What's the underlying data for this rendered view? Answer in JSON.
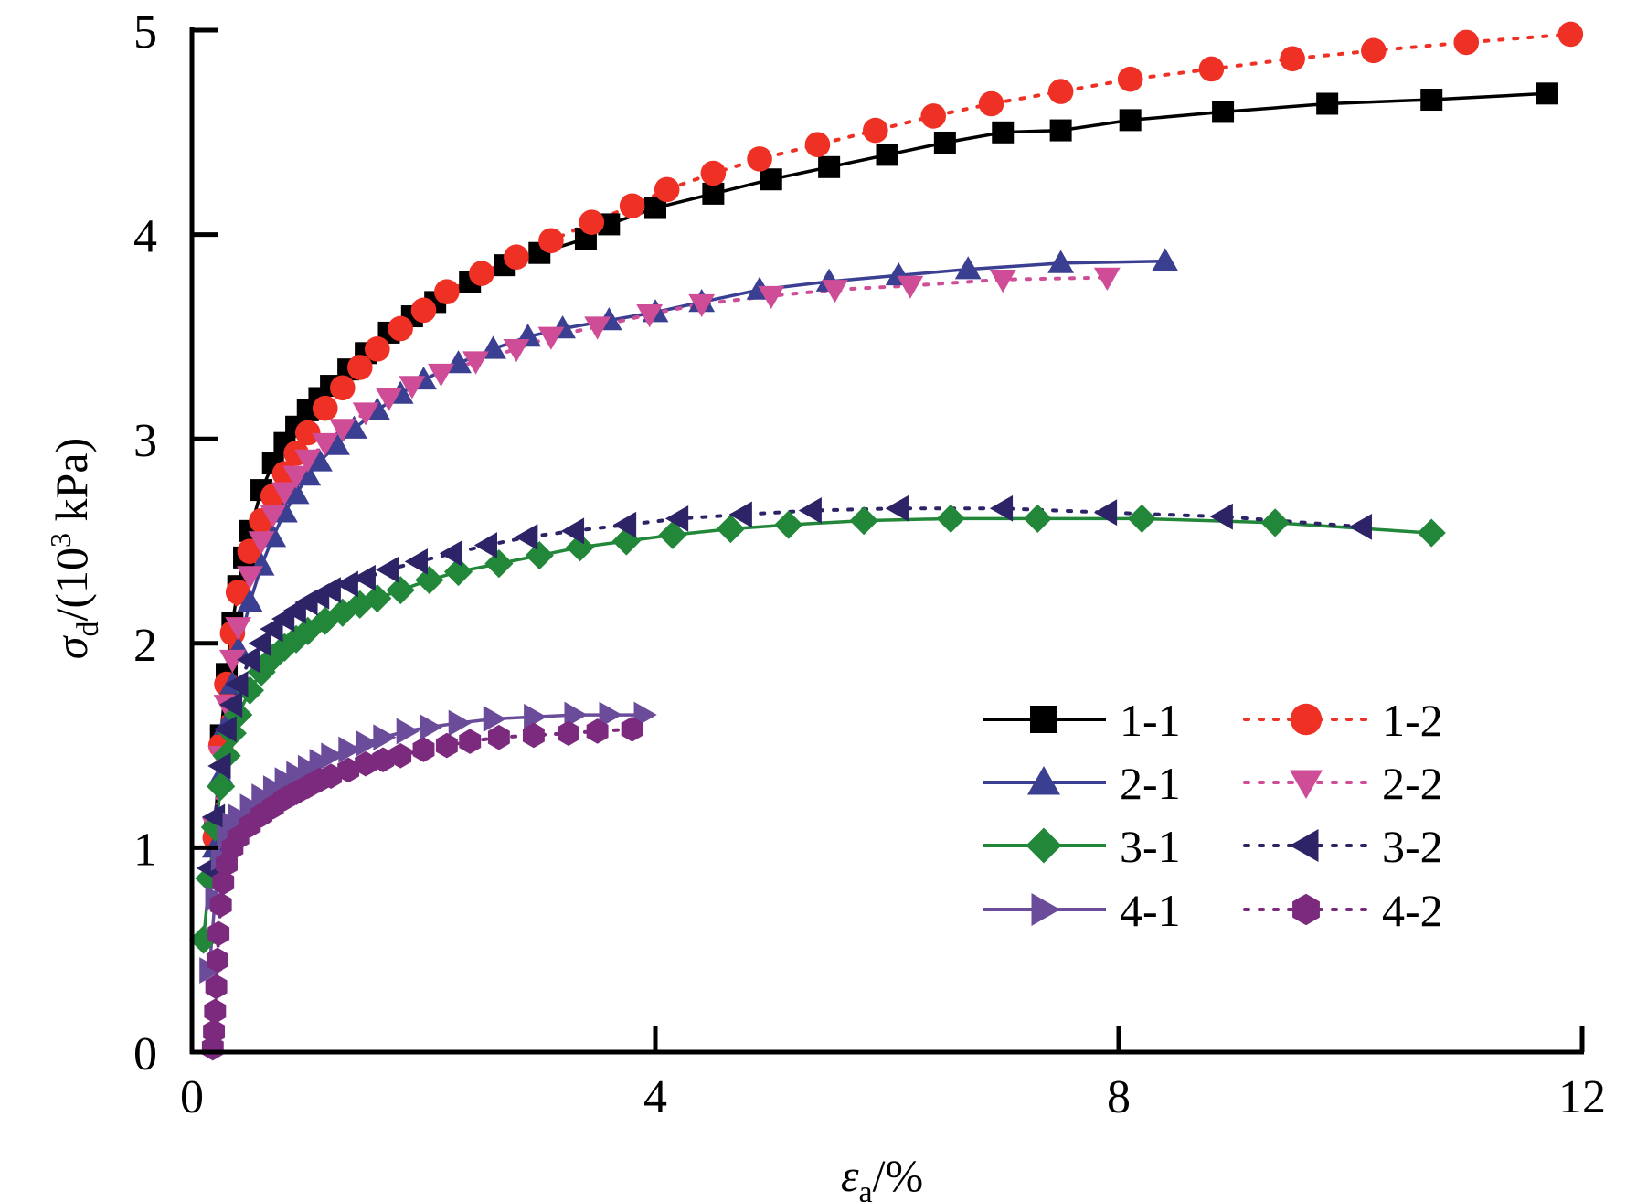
{
  "chart_data": {
    "type": "line",
    "xlabel": {
      "sym": "ε",
      "sub": "a",
      "rest": "/%"
    },
    "ylabel": {
      "sym": "σ",
      "sub": "d",
      "pre": "/(10",
      "sup": "3",
      "post": " kPa)"
    },
    "xlim": [
      0,
      12
    ],
    "ylim": [
      0,
      5
    ],
    "xticks": [
      0,
      4,
      8,
      12
    ],
    "yticks": [
      0,
      1,
      2,
      3,
      4,
      5
    ],
    "grid": false,
    "legend_position": "bottom-right",
    "series": [
      {
        "name": "1-1",
        "color": "#000000",
        "marker": "square",
        "dash": "solid",
        "x": [
          0.2,
          0.25,
          0.3,
          0.35,
          0.4,
          0.45,
          0.5,
          0.6,
          0.7,
          0.8,
          0.9,
          1.0,
          1.1,
          1.2,
          1.35,
          1.5,
          1.7,
          1.9,
          2.1,
          2.4,
          2.7,
          3.0,
          3.4,
          3.6,
          4.0,
          4.5,
          5.0,
          5.5,
          6.0,
          6.5,
          7.0,
          7.5,
          8.1,
          8.9,
          9.8,
          10.7,
          11.7
        ],
        "y": [
          1.1,
          1.55,
          1.85,
          2.1,
          2.28,
          2.42,
          2.55,
          2.75,
          2.88,
          2.98,
          3.06,
          3.14,
          3.2,
          3.26,
          3.34,
          3.42,
          3.52,
          3.6,
          3.67,
          3.77,
          3.85,
          3.91,
          3.98,
          4.05,
          4.13,
          4.2,
          4.27,
          4.33,
          4.39,
          4.45,
          4.5,
          4.51,
          4.56,
          4.6,
          4.64,
          4.66,
          4.69
        ]
      },
      {
        "name": "1-2",
        "color": "#ee3124",
        "marker": "circle",
        "dash": "dotted",
        "x": [
          0.2,
          0.25,
          0.3,
          0.35,
          0.4,
          0.5,
          0.6,
          0.7,
          0.8,
          0.9,
          1.0,
          1.15,
          1.3,
          1.45,
          1.6,
          1.8,
          2.0,
          2.2,
          2.5,
          2.8,
          3.1,
          3.45,
          3.8,
          4.1,
          4.5,
          4.9,
          5.4,
          5.9,
          6.4,
          6.9,
          7.5,
          8.1,
          8.8,
          9.5,
          10.2,
          11.0,
          11.9
        ],
        "y": [
          1.05,
          1.5,
          1.8,
          2.05,
          2.25,
          2.45,
          2.6,
          2.72,
          2.83,
          2.93,
          3.03,
          3.15,
          3.25,
          3.35,
          3.44,
          3.54,
          3.63,
          3.72,
          3.81,
          3.89,
          3.97,
          4.06,
          4.14,
          4.22,
          4.3,
          4.37,
          4.44,
          4.51,
          4.58,
          4.64,
          4.7,
          4.76,
          4.81,
          4.86,
          4.9,
          4.94,
          4.98
        ]
      },
      {
        "name": "2-1",
        "color": "#3b3f92",
        "marker": "triangle-up",
        "dash": "solid",
        "x": [
          0.2,
          0.25,
          0.3,
          0.35,
          0.4,
          0.5,
          0.6,
          0.7,
          0.8,
          0.9,
          1.0,
          1.1,
          1.25,
          1.4,
          1.6,
          1.8,
          2.0,
          2.3,
          2.6,
          2.9,
          3.2,
          3.6,
          4.0,
          4.4,
          4.9,
          5.5,
          6.1,
          6.7,
          7.5,
          8.4
        ],
        "y": [
          1.0,
          1.35,
          1.6,
          1.8,
          1.97,
          2.2,
          2.38,
          2.52,
          2.64,
          2.73,
          2.82,
          2.89,
          2.97,
          3.05,
          3.14,
          3.22,
          3.29,
          3.37,
          3.44,
          3.5,
          3.54,
          3.58,
          3.62,
          3.67,
          3.73,
          3.77,
          3.8,
          3.83,
          3.86,
          3.87
        ]
      },
      {
        "name": "2-2",
        "color": "#cf4d97",
        "marker": "triangle-down",
        "dash": "dotted",
        "x": [
          0.2,
          0.25,
          0.3,
          0.35,
          0.4,
          0.5,
          0.6,
          0.7,
          0.8,
          0.9,
          1.0,
          1.15,
          1.3,
          1.5,
          1.7,
          1.9,
          2.15,
          2.45,
          2.8,
          3.1,
          3.5,
          3.95,
          4.4,
          5.0,
          5.55,
          6.2,
          7.0,
          7.9
        ],
        "y": [
          1.1,
          1.45,
          1.7,
          1.92,
          2.08,
          2.33,
          2.5,
          2.63,
          2.74,
          2.82,
          2.9,
          2.98,
          3.05,
          3.13,
          3.2,
          3.26,
          3.32,
          3.38,
          3.44,
          3.5,
          3.55,
          3.61,
          3.66,
          3.7,
          3.73,
          3.75,
          3.78,
          3.79
        ]
      },
      {
        "name": "3-1",
        "color": "#23873a",
        "marker": "diamond",
        "dash": "solid",
        "x": [
          0.1,
          0.15,
          0.2,
          0.25,
          0.3,
          0.35,
          0.4,
          0.5,
          0.6,
          0.7,
          0.8,
          0.9,
          1.0,
          1.15,
          1.3,
          1.45,
          1.6,
          1.8,
          2.05,
          2.3,
          2.65,
          3.0,
          3.35,
          3.75,
          4.15,
          4.65,
          5.15,
          5.8,
          6.55,
          7.3,
          8.2,
          9.35,
          10.7
        ],
        "y": [
          0.55,
          0.85,
          1.1,
          1.3,
          1.45,
          1.56,
          1.65,
          1.77,
          1.86,
          1.93,
          1.98,
          2.02,
          2.06,
          2.11,
          2.15,
          2.19,
          2.22,
          2.26,
          2.31,
          2.35,
          2.39,
          2.43,
          2.47,
          2.5,
          2.53,
          2.56,
          2.58,
          2.6,
          2.61,
          2.61,
          2.61,
          2.59,
          2.54
        ]
      },
      {
        "name": "3-2",
        "color": "#2d2367",
        "marker": "triangle-left",
        "dash": "dotted",
        "x": [
          0.15,
          0.2,
          0.25,
          0.3,
          0.35,
          0.4,
          0.5,
          0.6,
          0.7,
          0.8,
          0.9,
          1.0,
          1.1,
          1.2,
          1.35,
          1.5,
          1.7,
          1.95,
          2.25,
          2.55,
          2.9,
          3.3,
          3.75,
          4.2,
          4.75,
          5.35,
          6.1,
          7.0,
          7.9,
          8.9,
          10.1
        ],
        "y": [
          0.9,
          1.15,
          1.4,
          1.58,
          1.7,
          1.8,
          1.92,
          2.0,
          2.07,
          2.12,
          2.16,
          2.2,
          2.23,
          2.26,
          2.29,
          2.32,
          2.36,
          2.4,
          2.44,
          2.48,
          2.52,
          2.55,
          2.58,
          2.61,
          2.63,
          2.65,
          2.66,
          2.66,
          2.64,
          2.62,
          2.57
        ]
      },
      {
        "name": "4-1",
        "color": "#6b4c9a",
        "marker": "triangle-right",
        "dash": "solid",
        "x": [
          0.15,
          0.2,
          0.25,
          0.3,
          0.35,
          0.4,
          0.5,
          0.6,
          0.7,
          0.8,
          0.9,
          1.0,
          1.1,
          1.2,
          1.35,
          1.5,
          1.65,
          1.85,
          2.05,
          2.3,
          2.6,
          2.95,
          3.3,
          3.6,
          3.9
        ],
        "y": [
          0.4,
          0.75,
          0.95,
          1.05,
          1.11,
          1.15,
          1.2,
          1.25,
          1.29,
          1.33,
          1.36,
          1.39,
          1.42,
          1.45,
          1.48,
          1.51,
          1.54,
          1.57,
          1.59,
          1.61,
          1.63,
          1.64,
          1.65,
          1.65,
          1.65
        ]
      },
      {
        "name": "4-2",
        "color": "#7b2a7e",
        "marker": "hexagon",
        "dash": "dotted",
        "x": [
          0.18,
          0.19,
          0.2,
          0.21,
          0.22,
          0.23,
          0.25,
          0.27,
          0.3,
          0.35,
          0.4,
          0.5,
          0.6,
          0.7,
          0.8,
          0.9,
          1.0,
          1.1,
          1.2,
          1.35,
          1.5,
          1.65,
          1.8,
          2.0,
          2.2,
          2.4,
          2.65,
          2.95,
          3.25,
          3.5,
          3.8
        ],
        "y": [
          0.02,
          0.1,
          0.2,
          0.32,
          0.45,
          0.58,
          0.72,
          0.83,
          0.92,
          1.0,
          1.05,
          1.11,
          1.16,
          1.2,
          1.24,
          1.27,
          1.3,
          1.33,
          1.35,
          1.38,
          1.41,
          1.43,
          1.45,
          1.48,
          1.5,
          1.52,
          1.54,
          1.55,
          1.56,
          1.57,
          1.58
        ]
      }
    ]
  }
}
